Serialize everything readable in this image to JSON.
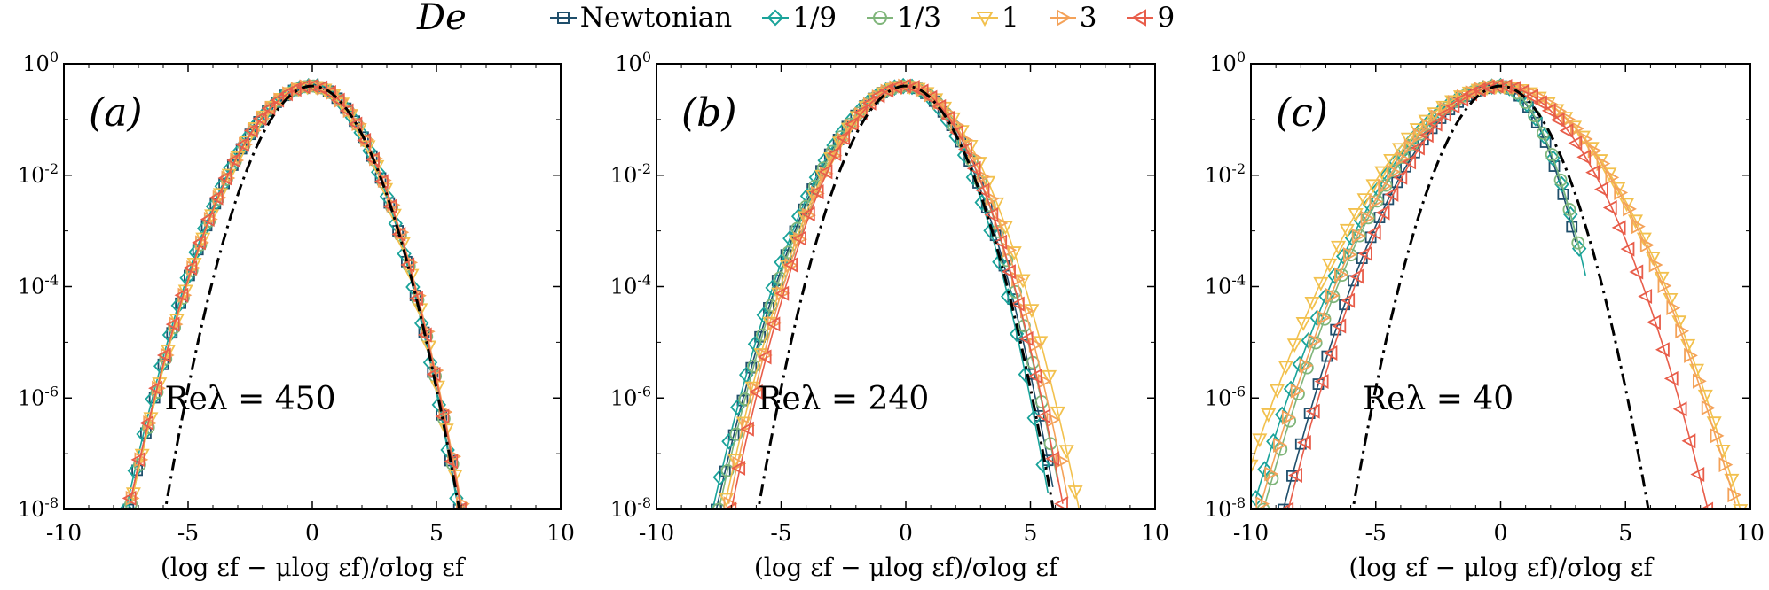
{
  "legend": {
    "title": "De",
    "entries": [
      {
        "label": "Newtonian",
        "color": "#1f4e6b",
        "marker": "square"
      },
      {
        "label": "1/9",
        "color": "#1aa39a",
        "marker": "diamond"
      },
      {
        "label": "1/3",
        "color": "#7fb57a",
        "marker": "circle"
      },
      {
        "label": "1",
        "color": "#f2c14e",
        "marker": "triangle-down"
      },
      {
        "label": "3",
        "color": "#f4a259",
        "marker": "triangle-right"
      },
      {
        "label": "9",
        "color": "#e85d4a",
        "marker": "triangle-left"
      }
    ]
  },
  "chart_data": [
    {
      "type": "line",
      "panel_label": "(a)",
      "annotation": "Reλ = 450",
      "xlabel": "(log εf − μlog εf)/σlog εf",
      "ylabel": "",
      "xlim": [
        -10,
        10
      ],
      "ylim_log10": [
        -8,
        0
      ],
      "yscale": "log",
      "xticks": [
        -10,
        -5,
        0,
        5,
        10
      ],
      "xtick_labels": [
        "-10",
        "-5",
        "0",
        "5",
        "10"
      ],
      "ytick_exponents": [
        0,
        -2,
        -4,
        -6,
        -8
      ],
      "ytick_labels": [
        "10",
        "10",
        "10",
        "10",
        "10"
      ],
      "ytick_superscripts": [
        "0",
        "-2",
        "-4",
        "-6",
        "-8"
      ],
      "gaussian_reference": {
        "style": "dash-dot",
        "color": "#000000",
        "x_range": [
          -6,
          6
        ]
      },
      "series": [
        {
          "name": "Newtonian",
          "x_range": [
            -7.4,
            5.9
          ],
          "log10_pdf_at_xmin": -8.0,
          "log10_pdf_at_xmax": -8.0
        },
        {
          "name": "1/9",
          "x_range": [
            -7.5,
            5.8
          ],
          "log10_pdf_at_xmin": -8.0,
          "log10_pdf_at_xmax": -7.8
        },
        {
          "name": "1/3",
          "x_range": [
            -7.3,
            5.9
          ],
          "log10_pdf_at_xmin": -7.9,
          "log10_pdf_at_xmax": -7.8
        },
        {
          "name": "1",
          "x_range": [
            -7.2,
            6.0
          ],
          "log10_pdf_at_xmin": -7.7,
          "log10_pdf_at_xmax": -8.0
        },
        {
          "name": "3",
          "x_range": [
            -7.3,
            6.0
          ],
          "log10_pdf_at_xmin": -7.8,
          "log10_pdf_at_xmax": -7.9
        },
        {
          "name": "9",
          "x_range": [
            -7.3,
            6.0
          ],
          "log10_pdf_at_xmin": -7.8,
          "log10_pdf_at_xmax": -8.0
        }
      ]
    },
    {
      "type": "line",
      "panel_label": "(b)",
      "annotation": "Reλ = 240",
      "xlabel": "(log εf − μlog εf)/σlog εf",
      "ylabel": "",
      "xlim": [
        -10,
        10
      ],
      "ylim_log10": [
        -8,
        0
      ],
      "yscale": "log",
      "xticks": [
        -10,
        -5,
        0,
        5,
        10
      ],
      "xtick_labels": [
        "-10",
        "-5",
        "0",
        "5",
        "10"
      ],
      "ytick_exponents": [
        0,
        -2,
        -4,
        -6,
        -8
      ],
      "ytick_labels": [
        "10",
        "10",
        "10",
        "10",
        "10"
      ],
      "ytick_superscripts": [
        "0",
        "-2",
        "-4",
        "-6",
        "-8"
      ],
      "gaussian_reference": {
        "style": "dash-dot",
        "color": "#000000",
        "x_range": [
          -6,
          6
        ]
      },
      "series": [
        {
          "name": "Newtonian",
          "x_range": [
            -7.6,
            5.9
          ],
          "log10_pdf_at_xmin": -8.0,
          "log10_pdf_at_xmax": -7.6
        },
        {
          "name": "1/9",
          "x_range": [
            -7.8,
            5.7
          ],
          "log10_pdf_at_xmin": -8.1,
          "log10_pdf_at_xmax": -7.7
        },
        {
          "name": "1/3",
          "x_range": [
            -7.5,
            6.1
          ],
          "log10_pdf_at_xmin": -8.0,
          "log10_pdf_at_xmax": -7.5
        },
        {
          "name": "1",
          "x_range": [
            -7.2,
            7.0
          ],
          "log10_pdf_at_xmin": -7.8,
          "log10_pdf_at_xmax": -8.1
        },
        {
          "name": "3",
          "x_range": [
            -7.1,
            6.5
          ],
          "log10_pdf_at_xmin": -7.9,
          "log10_pdf_at_xmax": -7.8
        },
        {
          "name": "9",
          "x_range": [
            -7.0,
            6.3
          ],
          "log10_pdf_at_xmin": -8.0,
          "log10_pdf_at_xmax": -7.9
        }
      ]
    },
    {
      "type": "line",
      "panel_label": "(c)",
      "annotation": "Reλ = 40",
      "xlabel": "(log εf − μlog εf)/σlog εf",
      "ylabel": "",
      "xlim": [
        -10,
        10
      ],
      "ylim_log10": [
        -8,
        0
      ],
      "yscale": "log",
      "xticks": [
        -10,
        -5,
        0,
        5,
        10
      ],
      "xtick_labels": [
        "-10",
        "-5",
        "0",
        "5",
        "10"
      ],
      "ytick_exponents": [
        0,
        -2,
        -4,
        -6,
        -8
      ],
      "ytick_labels": [
        "10",
        "10",
        "10",
        "10",
        "10"
      ],
      "ytick_superscripts": [
        "0",
        "-2",
        "-4",
        "-6",
        "-8"
      ],
      "gaussian_reference": {
        "style": "dash-dot",
        "color": "#000000",
        "x_range": [
          -6,
          6
        ]
      },
      "series": [
        {
          "name": "Newtonian",
          "x_range": [
            -8.7,
            3.0
          ],
          "log10_pdf_at_xmin": -8.0,
          "log10_pdf_at_xmax": -3.2
        },
        {
          "name": "1/9",
          "x_range": [
            -9.8,
            3.4
          ],
          "log10_pdf_at_xmin": -7.8,
          "log10_pdf_at_xmax": -3.8
        },
        {
          "name": "1/3",
          "x_range": [
            -9.5,
            3.2
          ],
          "log10_pdf_at_xmin": -8.0,
          "log10_pdf_at_xmax": -3.4
        },
        {
          "name": "1",
          "x_range": [
            -10.0,
            9.6
          ],
          "log10_pdf_at_xmin": -7.2,
          "log10_pdf_at_xmax": -8.0
        },
        {
          "name": "3",
          "x_range": [
            -9.6,
            9.4
          ],
          "log10_pdf_at_xmin": -7.9,
          "log10_pdf_at_xmax": -7.9
        },
        {
          "name": "9",
          "x_range": [
            -8.5,
            8.3
          ],
          "log10_pdf_at_xmin": -8.0,
          "log10_pdf_at_xmax": -8.0
        }
      ]
    }
  ]
}
